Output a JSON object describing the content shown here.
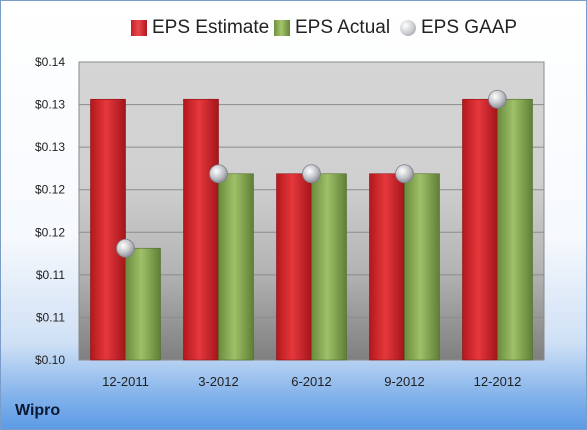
{
  "legend": {
    "estimate": "EPS Estimate",
    "actual": "EPS Actual",
    "gaap": "EPS GAAP"
  },
  "company": "Wipro",
  "colors": {
    "estimate": "#d42a2f",
    "actual": "#8db458",
    "gaap": "#c0c2c7"
  },
  "chart_data": {
    "type": "bar",
    "title": "",
    "xlabel": "",
    "ylabel": "",
    "categories": [
      "12-2011",
      "3-2012",
      "6-2012",
      "9-2012",
      "12-2012"
    ],
    "series": [
      {
        "name": "EPS Estimate",
        "values": [
          0.135,
          0.135,
          0.125,
          0.125,
          0.135
        ]
      },
      {
        "name": "EPS Actual",
        "values": [
          0.115,
          0.125,
          0.125,
          0.125,
          0.135
        ]
      },
      {
        "name": "EPS GAAP",
        "values": [
          0.115,
          0.125,
          0.125,
          0.125,
          0.135
        ],
        "marker": "circle"
      }
    ],
    "yticks": [
      "$0.10",
      "$0.11",
      "$0.11",
      "$0.12",
      "$0.12",
      "$0.13",
      "$0.13",
      "$0.14"
    ],
    "ylim": [
      0.1,
      0.14
    ],
    "grid": true,
    "legend_position": "top"
  }
}
